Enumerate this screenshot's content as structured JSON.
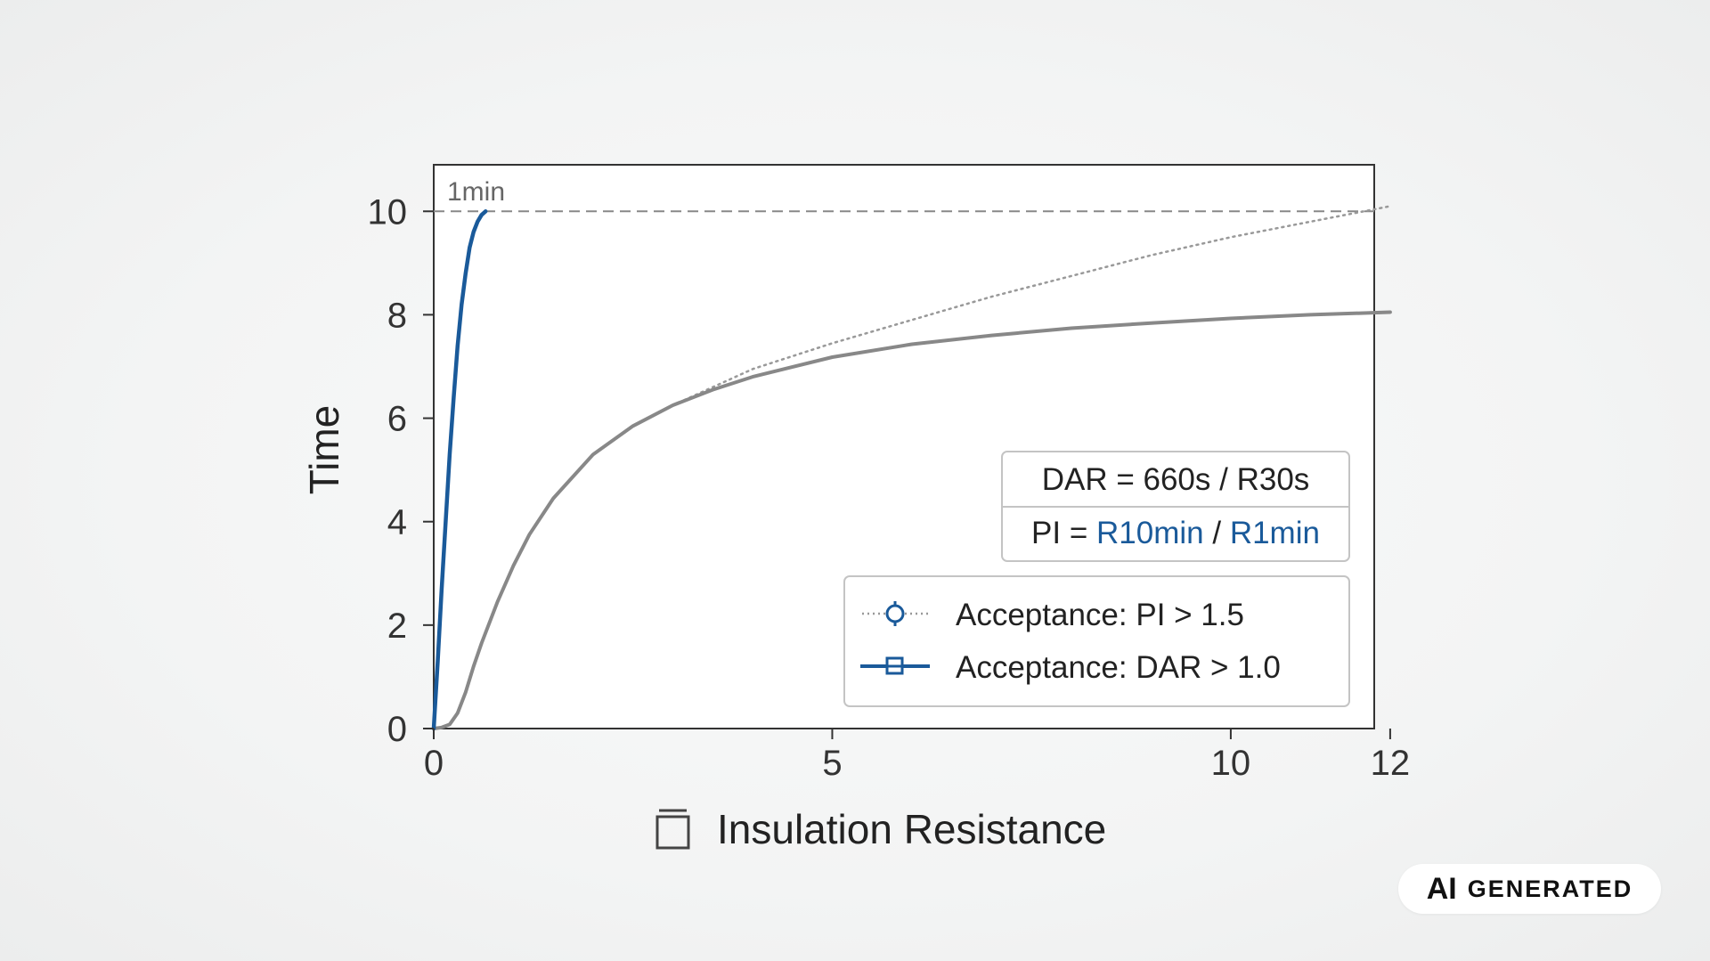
{
  "chart_data": {
    "type": "line",
    "xlabel": "Insulation Resistance",
    "ylabel": "Time",
    "xlim": [
      0,
      11.8
    ],
    "ylim": [
      0,
      10.9
    ],
    "x_ticks": [
      "0",
      "5",
      "10",
      "12"
    ],
    "y_ticks": [
      "0",
      "2",
      "4",
      "6",
      "8",
      "10"
    ],
    "grid": false,
    "legend_position": "lower-right",
    "reference_line": {
      "y": 10,
      "style": "dashed",
      "color": "#888888"
    },
    "annotations": [
      {
        "text": "1min",
        "x": 0.2,
        "y": 10.5
      }
    ],
    "info_box": {
      "line1": "DAR = 660s / R30s",
      "line2_prefix": "PI = ",
      "line2_num": "R10min",
      "line2_sep": " / ",
      "line2_den": "R1min"
    },
    "legend": [
      {
        "label": "Acceptance: PI > 1.5",
        "style": "dotted",
        "marker": "circle",
        "color": "#1a5a9a"
      },
      {
        "label": "Acceptance: DAR > 1.0",
        "style": "solid",
        "marker": "square",
        "color": "#1a5a9a"
      }
    ],
    "series": [
      {
        "style": "solid",
        "color": "#1a5a9a",
        "x": [
          0,
          0.05,
          0.1,
          0.15,
          0.2,
          0.25,
          0.3,
          0.35,
          0.4,
          0.45,
          0.5,
          0.55,
          0.6,
          0.65
        ],
        "y": [
          0,
          1.3,
          2.7,
          4.0,
          5.3,
          6.4,
          7.4,
          8.2,
          8.8,
          9.3,
          9.6,
          9.8,
          9.93,
          10.0
        ]
      },
      {
        "style": "solid",
        "color": "#888888",
        "x": [
          0,
          0.1,
          0.2,
          0.3,
          0.4,
          0.5,
          0.6,
          0.8,
          1.0,
          1.2,
          1.5,
          2.0,
          2.5,
          3.0,
          3.5,
          4.0,
          5.0,
          6.0,
          7.0,
          8.0,
          9.0,
          10.0,
          11.0,
          12.0
        ],
        "y": [
          0,
          0.02,
          0.08,
          0.3,
          0.7,
          1.2,
          1.65,
          2.45,
          3.15,
          3.75,
          4.45,
          5.3,
          5.85,
          6.25,
          6.55,
          6.8,
          7.18,
          7.43,
          7.6,
          7.74,
          7.84,
          7.93,
          8.0,
          8.05
        ]
      },
      {
        "style": "dotted",
        "color": "#999999",
        "x": [
          3.0,
          4.0,
          5.0,
          6.0,
          7.0,
          8.0,
          9.0,
          10.0,
          11.0,
          12.0
        ],
        "y": [
          6.25,
          6.95,
          7.45,
          7.9,
          8.35,
          8.75,
          9.15,
          9.5,
          9.8,
          10.1
        ]
      }
    ]
  },
  "badge": {
    "ai": "AI",
    "text": "GENERATED"
  }
}
